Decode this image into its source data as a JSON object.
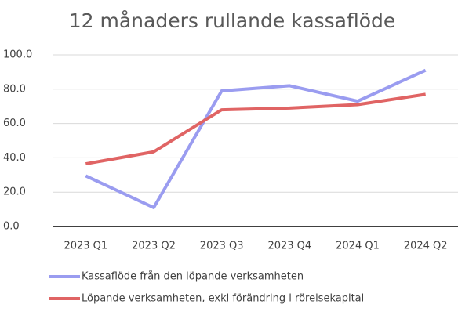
{
  "chart_data": {
    "type": "line",
    "title": "12 månaders rullande kassaflöde",
    "categories": [
      "2023 Q1",
      "2023 Q2",
      "2023 Q3",
      "2023 Q4",
      "2024 Q1",
      "2024 Q2"
    ],
    "series": [
      {
        "name": "Kassaflöde från den löpande verksamheten",
        "color": "#9a9cf0",
        "values": [
          29.5,
          11,
          79,
          82,
          73,
          91
        ]
      },
      {
        "name": "Löpande verksamheten, exkl förändring i rörelsekapital",
        "color": "#e06464",
        "values": [
          36.5,
          43.5,
          68,
          69,
          71,
          77
        ]
      }
    ],
    "ylim": [
      0,
      100
    ],
    "yticks": [
      {
        "value": 0,
        "label": "0.0"
      },
      {
        "value": 20,
        "label": "20.0"
      },
      {
        "value": 40,
        "label": "40.0"
      },
      {
        "value": 60,
        "label": "60.0"
      },
      {
        "value": 80,
        "label": "80.0"
      },
      {
        "value": 100,
        "label": "100.0"
      }
    ],
    "grid": true,
    "legend": "bottom"
  }
}
